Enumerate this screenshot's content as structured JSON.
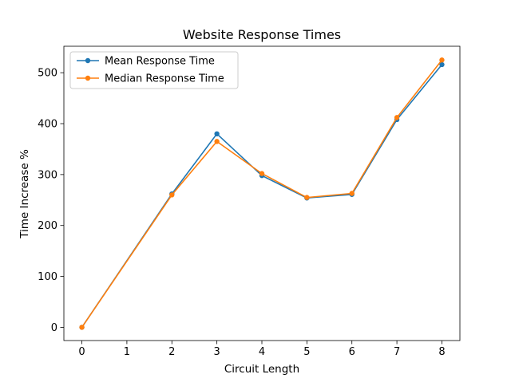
{
  "chart_data": {
    "type": "line",
    "title": "Website Response Times",
    "xlabel": "Circuit Length",
    "ylabel": "Time Increase %",
    "x": [
      0,
      2,
      3,
      4,
      5,
      6,
      7,
      8
    ],
    "xticks": [
      0,
      1,
      2,
      3,
      4,
      5,
      6,
      7,
      8
    ],
    "yticks": [
      0,
      100,
      200,
      300,
      400,
      500
    ],
    "xlim": [
      -0.4,
      8.4
    ],
    "ylim": [
      -26,
      552
    ],
    "grid": false,
    "legend_position": "top-left",
    "series": [
      {
        "name": "Mean Response Time",
        "color": "#1f77b4",
        "marker": "circle",
        "values": [
          0,
          262,
          380,
          298,
          254,
          261,
          408,
          516
        ]
      },
      {
        "name": "Median Response Time",
        "color": "#ff7f0e",
        "marker": "circle",
        "values": [
          0,
          260,
          365,
          302,
          255,
          263,
          412,
          525
        ]
      }
    ]
  }
}
